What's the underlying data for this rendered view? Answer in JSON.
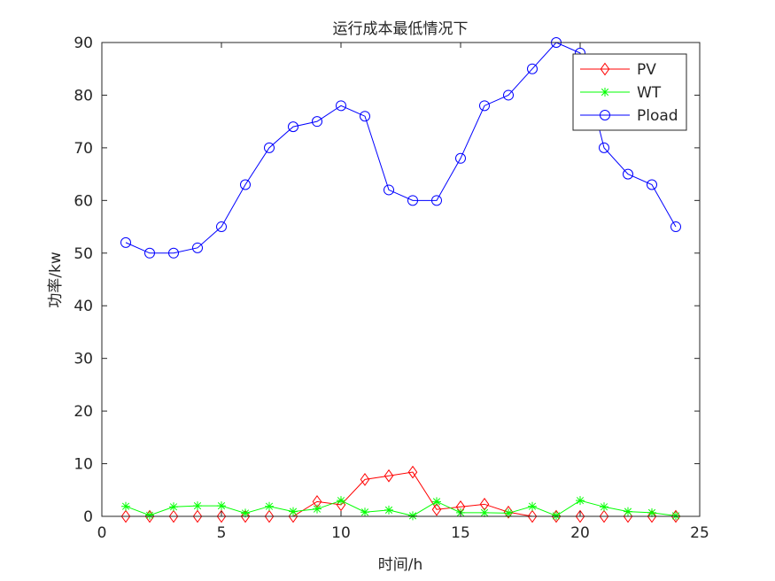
{
  "chart_data": {
    "type": "line",
    "title": "运行成本最低情况下",
    "xlabel": "时间/h",
    "ylabel": "功率/kw",
    "xlim": [
      0,
      25
    ],
    "ylim": [
      0,
      90
    ],
    "xticks": [
      0,
      5,
      10,
      15,
      20,
      25
    ],
    "yticks": [
      0,
      10,
      20,
      30,
      40,
      50,
      60,
      70,
      80,
      90
    ],
    "grid": false,
    "legend_position": "top-right",
    "x": [
      1,
      2,
      3,
      4,
      5,
      6,
      7,
      8,
      9,
      10,
      11,
      12,
      13,
      14,
      15,
      16,
      17,
      18,
      19,
      20,
      21,
      22,
      23,
      24
    ],
    "series": [
      {
        "name": "PV",
        "color": "#ff0000",
        "marker": "diamond",
        "values": [
          0,
          0,
          0,
          0,
          0,
          0,
          0,
          0,
          2.8,
          2.2,
          7.0,
          7.7,
          8.4,
          1.3,
          1.8,
          2.3,
          0.8,
          0,
          0,
          0,
          0,
          0,
          0,
          0
        ]
      },
      {
        "name": "WT",
        "color": "#00ff00",
        "marker": "asterisk",
        "values": [
          1.9,
          0.2,
          1.8,
          2.0,
          2.0,
          0.6,
          1.9,
          0.9,
          1.4,
          3.0,
          0.8,
          1.2,
          0.1,
          2.8,
          0.7,
          0.7,
          0.6,
          1.9,
          0.1,
          3.0,
          1.8,
          0.9,
          0.7,
          0.1
        ]
      },
      {
        "name": "Pload",
        "color": "#0000ff",
        "marker": "circle",
        "values": [
          52,
          50,
          50,
          51,
          55,
          63,
          70,
          74,
          75,
          78,
          76,
          62,
          60,
          60,
          68,
          78,
          80,
          85,
          90,
          88,
          70,
          65,
          63,
          55
        ]
      }
    ]
  }
}
